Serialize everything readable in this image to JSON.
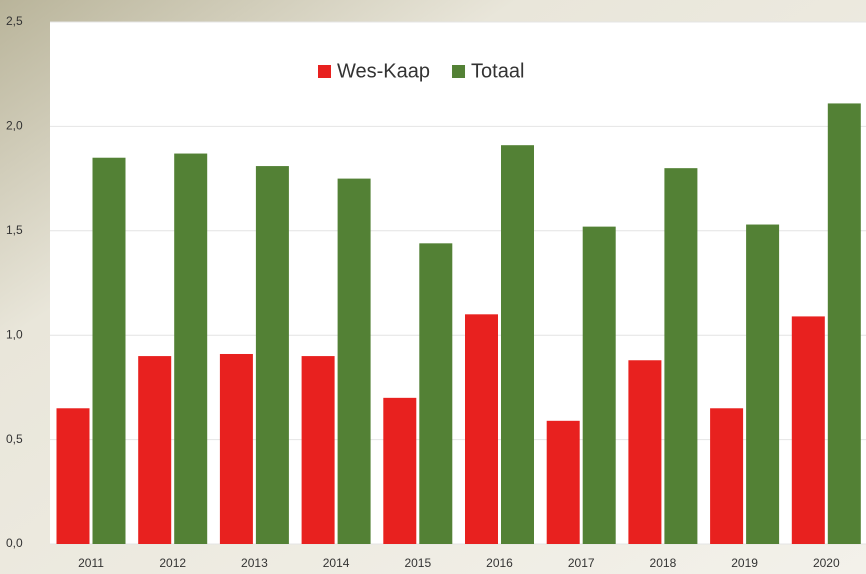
{
  "chart_data": {
    "type": "bar",
    "categories": [
      "2011",
      "2012",
      "2013",
      "2014",
      "2015",
      "2016",
      "2017",
      "2018",
      "2019",
      "2020"
    ],
    "series": [
      {
        "name": "Wes-Kaap",
        "color": "#e8211f",
        "values": [
          0.65,
          0.9,
          0.91,
          0.9,
          0.7,
          1.1,
          0.59,
          0.88,
          0.65,
          1.09
        ]
      },
      {
        "name": "Totaal",
        "color": "#538135",
        "values": [
          1.85,
          1.87,
          1.81,
          1.75,
          1.44,
          1.91,
          1.52,
          1.8,
          1.53,
          2.11
        ]
      }
    ],
    "ylim": [
      0,
      2.5
    ],
    "yticks": [
      {
        "value": 0,
        "label": "0,0"
      },
      {
        "value": 0.5,
        "label": "0,5"
      },
      {
        "value": 1,
        "label": "1,0"
      },
      {
        "value": 1.5,
        "label": "1,5"
      },
      {
        "value": 2,
        "label": "2,0"
      },
      {
        "value": 2.5,
        "label": "2,5"
      }
    ],
    "grid": true
  }
}
